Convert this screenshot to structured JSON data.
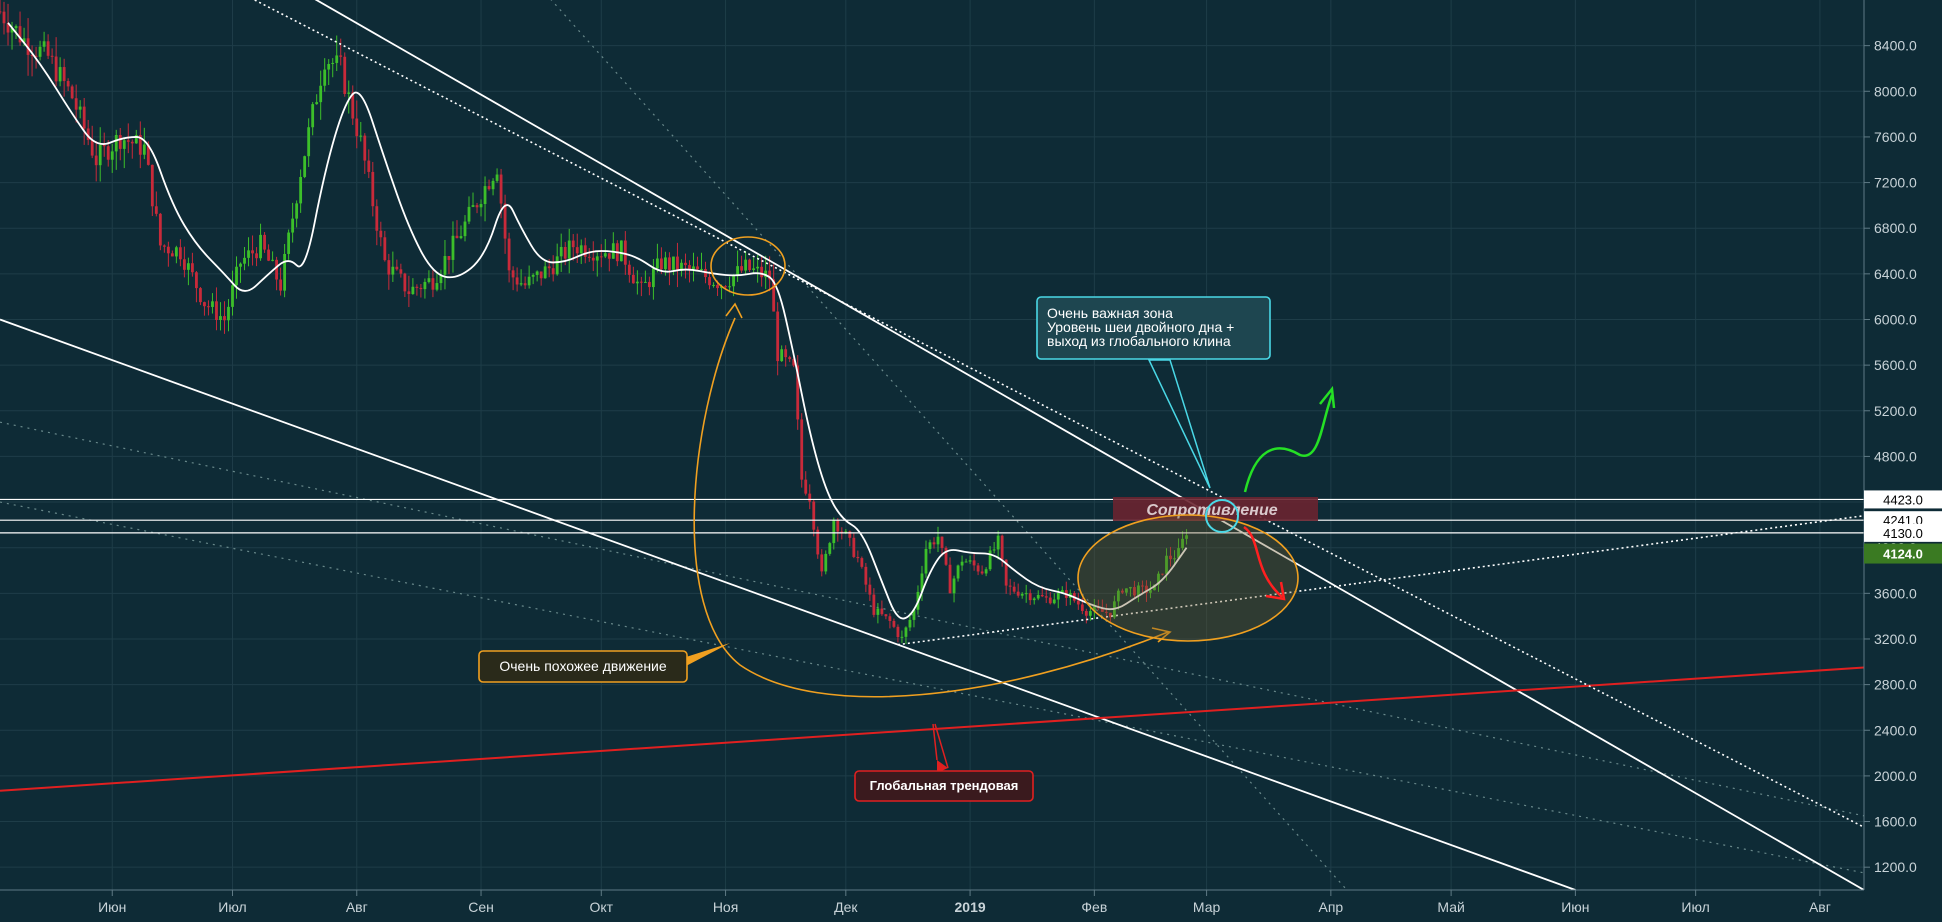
{
  "chart_data": {
    "type": "candlestick",
    "title": "",
    "x_ticks": [
      {
        "label": "Июн",
        "date": "2018-06-01"
      },
      {
        "label": "Июл",
        "date": "2018-07-01"
      },
      {
        "label": "Авг",
        "date": "2018-08-01"
      },
      {
        "label": "Сен",
        "date": "2018-09-01"
      },
      {
        "label": "Окт",
        "date": "2018-10-01"
      },
      {
        "label": "Ноя",
        "date": "2018-11-01"
      },
      {
        "label": "Дек",
        "date": "2018-12-01"
      },
      {
        "label": "2019",
        "date": "2019-01-01",
        "bold": true
      },
      {
        "label": "Фев",
        "date": "2019-02-01"
      },
      {
        "label": "Мар",
        "date": "2019-03-01"
      },
      {
        "label": "Апр",
        "date": "2019-04-01"
      },
      {
        "label": "Май",
        "date": "2019-05-01"
      },
      {
        "label": "Июн",
        "date": "2019-06-01"
      },
      {
        "label": "Июл",
        "date": "2019-07-01"
      },
      {
        "label": "Авг",
        "date": "2019-08-01"
      }
    ],
    "y_ticks": [
      1200,
      1600,
      2000,
      2400,
      2800,
      3200,
      3600,
      4000,
      4400,
      4800,
      5200,
      5600,
      6000,
      6400,
      6800,
      7200,
      7600,
      8000,
      8400
    ],
    "y_tick_labels": [
      "1200.0",
      "1600.0",
      "2000.0",
      "2400.0",
      "2800.0",
      "3200.0",
      "3600.0",
      "4000.0",
      "4400.0",
      "4800.0",
      "5200.0",
      "5600.0",
      "6000.0",
      "6400.0",
      "6800.0",
      "7200.0",
      "7600.0",
      "8000.0",
      "8400.0"
    ],
    "ylim": [
      1000,
      8800
    ],
    "xlim": [
      "2018-05-04",
      "2019-08-12"
    ],
    "price_path": [
      [
        "2018-05-04",
        8700
      ],
      [
        "2018-05-10",
        8450
      ],
      [
        "2018-05-16",
        8300
      ],
      [
        "2018-05-22",
        7950
      ],
      [
        "2018-05-28",
        7400
      ],
      [
        "2018-06-03",
        7600
      ],
      [
        "2018-06-09",
        7500
      ],
      [
        "2018-06-13",
        6650
      ],
      [
        "2018-06-18",
        6600
      ],
      [
        "2018-06-24",
        6150
      ],
      [
        "2018-06-29",
        6000
      ],
      [
        "2018-07-03",
        6500
      ],
      [
        "2018-07-08",
        6650
      ],
      [
        "2018-07-13",
        6300
      ],
      [
        "2018-07-18",
        7300
      ],
      [
        "2018-07-24",
        8300
      ],
      [
        "2018-07-28",
        8200
      ],
      [
        "2018-08-02",
        7550
      ],
      [
        "2018-08-08",
        6500
      ],
      [
        "2018-08-14",
        6250
      ],
      [
        "2018-08-20",
        6350
      ],
      [
        "2018-08-26",
        6700
      ],
      [
        "2018-09-01",
        7100
      ],
      [
        "2018-09-05",
        7350
      ],
      [
        "2018-09-08",
        6400
      ],
      [
        "2018-09-12",
        6300
      ],
      [
        "2018-09-18",
        6450
      ],
      [
        "2018-09-24",
        6650
      ],
      [
        "2018-09-30",
        6600
      ],
      [
        "2018-10-06",
        6600
      ],
      [
        "2018-10-11",
        6250
      ],
      [
        "2018-10-16",
        6500
      ],
      [
        "2018-10-24",
        6420
      ],
      [
        "2018-10-31",
        6320
      ],
      [
        "2018-11-06",
        6450
      ],
      [
        "2018-11-12",
        6370
      ],
      [
        "2018-11-14",
        5700
      ],
      [
        "2018-11-18",
        5550
      ],
      [
        "2018-11-20",
        4600
      ],
      [
        "2018-11-22",
        4450
      ],
      [
        "2018-11-25",
        3750
      ],
      [
        "2018-11-28",
        4250
      ],
      [
        "2018-12-01",
        4100
      ],
      [
        "2018-12-04",
        3900
      ],
      [
        "2018-12-08",
        3450
      ],
      [
        "2018-12-12",
        3350
      ],
      [
        "2018-12-15",
        3200
      ],
      [
        "2018-12-18",
        3450
      ],
      [
        "2018-12-21",
        4000
      ],
      [
        "2018-12-24",
        4100
      ],
      [
        "2018-12-27",
        3650
      ],
      [
        "2018-12-30",
        3900
      ],
      [
        "2019-01-04",
        3800
      ],
      [
        "2019-01-08",
        4050
      ],
      [
        "2019-01-10",
        3650
      ],
      [
        "2019-01-15",
        3600
      ],
      [
        "2019-01-20",
        3550
      ],
      [
        "2019-01-25",
        3600
      ],
      [
        "2019-01-30",
        3450
      ],
      [
        "2019-02-05",
        3430
      ],
      [
        "2019-02-08",
        3650
      ],
      [
        "2019-02-12",
        3620
      ],
      [
        "2019-02-16",
        3640
      ],
      [
        "2019-02-19",
        3900
      ],
      [
        "2019-02-22",
        3950
      ],
      [
        "2019-02-24",
        4150
      ]
    ],
    "moving_average": [
      [
        "2018-05-06",
        8600
      ],
      [
        "2018-05-14",
        8250
      ],
      [
        "2018-05-22",
        7800
      ],
      [
        "2018-05-28",
        7500
      ],
      [
        "2018-06-04",
        7600
      ],
      [
        "2018-06-10",
        7600
      ],
      [
        "2018-06-16",
        7000
      ],
      [
        "2018-06-22",
        6650
      ],
      [
        "2018-06-29",
        6400
      ],
      [
        "2018-07-04",
        6200
      ],
      [
        "2018-07-10",
        6400
      ],
      [
        "2018-07-15",
        6550
      ],
      [
        "2018-07-19",
        6400
      ],
      [
        "2018-07-24",
        7300
      ],
      [
        "2018-07-29",
        7900
      ],
      [
        "2018-08-02",
        8050
      ],
      [
        "2018-08-08",
        7400
      ],
      [
        "2018-08-14",
        6800
      ],
      [
        "2018-08-20",
        6400
      ],
      [
        "2018-08-26",
        6350
      ],
      [
        "2018-09-02",
        6550
      ],
      [
        "2018-09-07",
        7100
      ],
      [
        "2018-09-11",
        6800
      ],
      [
        "2018-09-16",
        6500
      ],
      [
        "2018-09-22",
        6500
      ],
      [
        "2018-09-28",
        6600
      ],
      [
        "2018-10-04",
        6600
      ],
      [
        "2018-10-10",
        6550
      ],
      [
        "2018-10-16",
        6400
      ],
      [
        "2018-10-22",
        6450
      ],
      [
        "2018-10-29",
        6400
      ],
      [
        "2018-11-04",
        6380
      ],
      [
        "2018-11-10",
        6420
      ],
      [
        "2018-11-14",
        6320
      ],
      [
        "2018-11-18",
        5700
      ],
      [
        "2018-11-22",
        5000
      ],
      [
        "2018-11-26",
        4500
      ],
      [
        "2018-11-30",
        4250
      ],
      [
        "2018-12-05",
        4150
      ],
      [
        "2018-12-10",
        3700
      ],
      [
        "2018-12-14",
        3350
      ],
      [
        "2018-12-18",
        3420
      ],
      [
        "2018-12-22",
        3800
      ],
      [
        "2018-12-26",
        4000
      ],
      [
        "2019-01-01",
        3950
      ],
      [
        "2019-01-07",
        3950
      ],
      [
        "2019-01-12",
        3800
      ],
      [
        "2019-01-18",
        3650
      ],
      [
        "2019-01-25",
        3600
      ],
      [
        "2019-01-31",
        3500
      ],
      [
        "2019-02-06",
        3440
      ],
      [
        "2019-02-12",
        3580
      ],
      [
        "2019-02-18",
        3700
      ],
      [
        "2019-02-24",
        4000
      ]
    ],
    "lines": [
      {
        "name": "upper-channel-line",
        "from": [
          "2018-07-17",
          8900
        ],
        "to": [
          "2019-08-12",
          1000
        ],
        "style": "solid",
        "color": "#ffffff"
      },
      {
        "name": "lower-channel-line",
        "from": [
          "2018-05-04",
          6000
        ],
        "to": [
          "2019-06-01",
          1000
        ],
        "style": "solid",
        "color": "#ffffff"
      },
      {
        "name": "global-trend-line",
        "from": [
          "2018-05-04",
          1870
        ],
        "to": [
          "2019-08-12",
          2950
        ],
        "style": "solid",
        "color": "#e02020"
      },
      {
        "name": "upper-dotted-trendline",
        "from": [
          "2018-07-01",
          8900
        ],
        "to": [
          "2019-08-12",
          1550
        ],
        "style": "dotted",
        "color": "#ffffff"
      },
      {
        "name": "neckline-dotted",
        "from": [
          "2018-12-14",
          3150
        ],
        "to": [
          "2019-08-12",
          4280
        ],
        "style": "dotted",
        "color": "#ffffff"
      },
      {
        "name": "steep-dotted-line",
        "from": [
          "2018-09-16",
          8900
        ],
        "to": [
          "2019-04-05",
          1000
        ],
        "style": "dotted-faint",
        "color": "#7fa0a0"
      },
      {
        "name": "faint-dotted-line-a",
        "from": [
          "2018-05-04",
          5100
        ],
        "to": [
          "2019-08-12",
          1650
        ],
        "style": "dotted-faint",
        "color": "#7fa0a0"
      },
      {
        "name": "faint-dotted-line-b",
        "from": [
          "2018-05-04",
          4400
        ],
        "to": [
          "2019-08-12",
          1150
        ],
        "style": "dotted-faint",
        "color": "#7fa0a0"
      }
    ],
    "horizontal_levels": [
      {
        "value": 4423,
        "label": "4423.0"
      },
      {
        "value": 4241,
        "label": "4241.0"
      },
      {
        "value": 4130,
        "label": "4130.0"
      }
    ],
    "current_price": {
      "value": 4124,
      "label": "4124.0",
      "color": "#3a7a22"
    },
    "annotations": {
      "similar_move": "Очень похожее движение",
      "global_trend": "Глобальная трендовая",
      "resistance": "Сопротивление",
      "important_zone": [
        "Очень важная зона",
        "Уровень шеи двойного дна +",
        "выход из глобального клина"
      ]
    }
  },
  "colors": {
    "background": "#0e2b36",
    "grid": "#1e3d48",
    "candle_up": "#3cbf2a",
    "candle_down": "#c82a3a",
    "ma": "#ffffff",
    "orange": "#f0a020",
    "cyan": "#4ad8e6",
    "green_arrow": "#25e025",
    "red_arrow": "#ff2020",
    "resistance_box": "#6a2430"
  }
}
